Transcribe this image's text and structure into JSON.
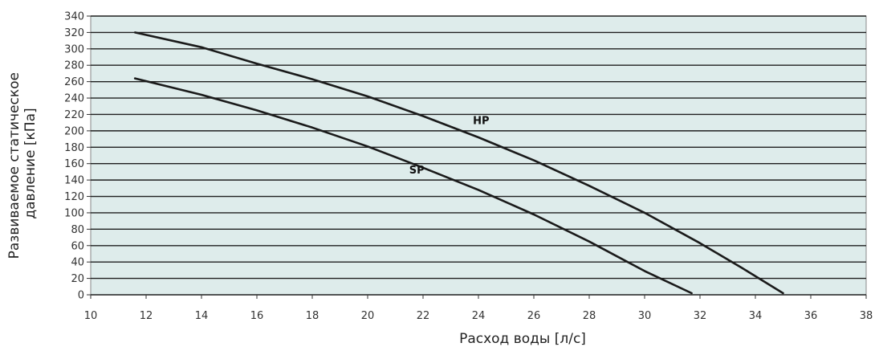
{
  "chart_data": {
    "type": "line",
    "xlabel": "Расход воды [л/с]",
    "ylabel": "Развиваемое статическое давление [кПа]",
    "ylabel_lines": [
      "Развиваемое статическое",
      "давление [кПа]"
    ],
    "xlim": [
      10,
      38
    ],
    "ylim": [
      0,
      340
    ],
    "x_ticks": [
      10,
      12,
      14,
      16,
      18,
      20,
      22,
      24,
      26,
      28,
      30,
      32,
      34,
      36,
      38
    ],
    "y_ticks": [
      0,
      20,
      40,
      60,
      80,
      100,
      120,
      140,
      160,
      180,
      200,
      220,
      240,
      260,
      280,
      300,
      320,
      340
    ],
    "grid": true,
    "plot_background": "#deeceb",
    "line_color": "#1a1a1a",
    "series": [
      {
        "name": "HP",
        "x": [
          11.6,
          14,
          16,
          18,
          20,
          22,
          24,
          26,
          28,
          30,
          32,
          33.5,
          35
        ],
        "y": [
          320,
          302,
          282,
          263,
          242,
          218,
          192,
          164,
          133,
          100,
          63,
          33,
          2
        ]
      },
      {
        "name": "SP",
        "x": [
          11.6,
          14,
          16,
          18,
          20,
          22,
          24,
          26,
          28,
          30,
          31.7
        ],
        "y": [
          264,
          244,
          225,
          204,
          181,
          155,
          128,
          98,
          65,
          29,
          2
        ]
      }
    ]
  }
}
